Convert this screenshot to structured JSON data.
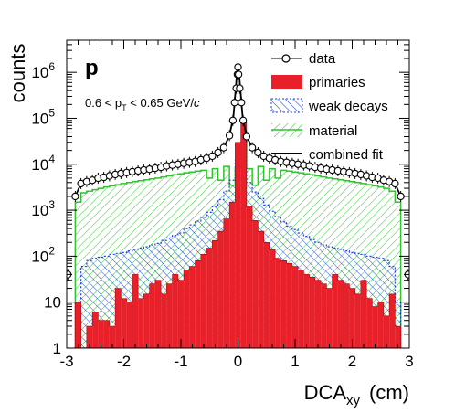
{
  "chart_data": {
    "type": "histogram",
    "y_scale": "log",
    "xlim": [
      -3,
      3
    ],
    "ylim": [
      1,
      5000000
    ],
    "xlabel": "DCA",
    "xlabel_sub": "xy",
    "xlabel_unit": "(cm)",
    "ylabel": "counts",
    "x_ticks": [
      -3,
      -2,
      -1,
      0,
      1,
      2,
      3
    ],
    "x_tick_labels": [
      "-3",
      "-2",
      "-1",
      "0",
      "1",
      "2",
      "3"
    ],
    "y_ticks": [
      1,
      10,
      100,
      1000,
      10000,
      100000,
      1000000
    ],
    "y_tick_labels": [
      {
        "base": "1",
        "exp": ""
      },
      {
        "base": "10",
        "exp": ""
      },
      {
        "base": "10",
        "exp": "2"
      },
      {
        "base": "10",
        "exp": "3"
      },
      {
        "base": "10",
        "exp": "4"
      },
      {
        "base": "10",
        "exp": "5"
      },
      {
        "base": "10",
        "exp": "6"
      }
    ],
    "annotations": {
      "particle": "p",
      "kin_pre": "0.6 < p",
      "kin_sub": "T",
      "kin_post": " < 0.65 GeV/",
      "kin_c": "c"
    },
    "legend": {
      "position": "top-right",
      "entries": [
        "data",
        "primaries",
        "weak decays",
        "material",
        "combined fit"
      ]
    },
    "colors": {
      "data": "#000000",
      "primaries": "#e8202a",
      "weak_decays": "#1f3fe0",
      "material": "#2fc42f",
      "combined_fit": "#000000"
    },
    "bin_edges": [
      -2.85,
      2.85
    ],
    "data_points": {
      "x": [
        -2.98,
        -2.85,
        -2.75,
        -2.65,
        -2.55,
        -2.45,
        -2.35,
        -2.25,
        -2.15,
        -2.05,
        -1.95,
        -1.85,
        -1.75,
        -1.65,
        -1.55,
        -1.45,
        -1.35,
        -1.25,
        -1.15,
        -1.05,
        -0.95,
        -0.85,
        -0.75,
        -0.65,
        -0.55,
        -0.45,
        -0.35,
        -0.25,
        -0.15,
        -0.09,
        -0.06,
        -0.03,
        -0.01,
        0.0,
        0.01,
        0.03,
        0.06,
        0.09,
        0.15,
        0.25,
        0.35,
        0.45,
        0.55,
        0.65,
        0.75,
        0.85,
        0.95,
        1.05,
        1.15,
        1.25,
        1.35,
        1.45,
        1.55,
        1.65,
        1.75,
        1.85,
        1.95,
        2.05,
        2.15,
        2.25,
        2.35,
        2.45,
        2.55,
        2.65,
        2.75,
        2.85,
        2.98
      ],
      "y": [
        40,
        2000,
        3800,
        4200,
        4500,
        5000,
        5200,
        5600,
        6000,
        6300,
        6600,
        6900,
        7200,
        7500,
        7800,
        8200,
        8600,
        9200,
        9600,
        10000,
        10500,
        11000,
        11500,
        12500,
        13500,
        15000,
        18000,
        23000,
        42000,
        90000,
        220000,
        450000,
        900000,
        1300000,
        900000,
        450000,
        220000,
        90000,
        40000,
        23000,
        18000,
        15000,
        13500,
        12500,
        11500,
        11000,
        10500,
        10000,
        9600,
        9200,
        8600,
        8200,
        7800,
        7500,
        7200,
        6900,
        6600,
        6300,
        6000,
        5600,
        5200,
        5000,
        4500,
        4200,
        3800,
        2000,
        40
      ]
    },
    "series": [
      {
        "name": "primaries",
        "bin_width": 0.1,
        "x_start": -2.85,
        "values": [
          10,
          1,
          3,
          6,
          4,
          4,
          3,
          20,
          12,
          10,
          40,
          12,
          15,
          25,
          30,
          15,
          25,
          40,
          30,
          50,
          60,
          80,
          110,
          150,
          220,
          350,
          650,
          1500,
          30000,
          80000,
          1200,
          600,
          350,
          200,
          140,
          90,
          80,
          70,
          60,
          50,
          40,
          35,
          30,
          25,
          20,
          40,
          30,
          25,
          20,
          15,
          30,
          12,
          8,
          10,
          5,
          15,
          3
        ]
      },
      {
        "name": "weak decays",
        "bin_width": 0.1,
        "x_start": -2.85,
        "values": [
          10,
          60,
          80,
          90,
          95,
          100,
          110,
          115,
          120,
          130,
          140,
          150,
          160,
          175,
          190,
          220,
          250,
          280,
          320,
          400,
          480,
          580,
          700,
          900,
          1200,
          1700,
          2600,
          4500,
          12000,
          30000,
          4000,
          2500,
          1800,
          1300,
          950,
          720,
          560,
          450,
          380,
          320,
          270,
          230,
          200,
          175,
          160,
          150,
          140,
          130,
          120,
          115,
          110,
          100,
          95,
          90,
          80,
          60,
          10
        ]
      },
      {
        "name": "material",
        "bin_width": 0.1,
        "x_start": -2.85,
        "values": [
          1500,
          2400,
          2600,
          2800,
          3000,
          3200,
          3400,
          3600,
          3800,
          4000,
          4200,
          4400,
          4600,
          4800,
          5000,
          5300,
          5600,
          5900,
          6200,
          6500,
          6800,
          7100,
          7400,
          5000,
          8000,
          4500,
          9000,
          3500,
          8000,
          30000,
          8000,
          3500,
          9000,
          4500,
          8000,
          5000,
          7400,
          7100,
          6800,
          6500,
          6200,
          5900,
          5600,
          5300,
          5000,
          4800,
          4600,
          4400,
          4200,
          4000,
          3800,
          3600,
          3400,
          3200,
          3000,
          2600,
          1500
        ]
      },
      {
        "name": "combined fit",
        "x": [
          -2.85,
          -2.75,
          -2.65,
          -2.55,
          -2.45,
          -2.35,
          -2.25,
          -2.15,
          -2.05,
          -1.95,
          -1.85,
          -1.75,
          -1.65,
          -1.55,
          -1.45,
          -1.35,
          -1.25,
          -1.15,
          -1.05,
          -0.95,
          -0.85,
          -0.75,
          -0.65,
          -0.55,
          -0.45,
          -0.35,
          -0.25,
          -0.15,
          -0.08,
          -0.04,
          -0.02,
          0.0,
          0.02,
          0.04,
          0.08,
          0.15,
          0.25,
          0.35,
          0.45,
          0.55,
          0.65,
          0.75,
          0.85,
          0.95,
          1.05,
          1.15,
          1.25,
          1.35,
          1.45,
          1.55,
          1.65,
          1.75,
          1.85,
          1.95,
          2.05,
          2.15,
          2.25,
          2.35,
          2.45,
          2.55,
          2.65,
          2.75,
          2.85
        ],
        "y": [
          2000,
          3800,
          4200,
          4500,
          5000,
          5200,
          5600,
          6000,
          6300,
          6600,
          6900,
          7200,
          7500,
          7800,
          8200,
          8600,
          9200,
          9600,
          10000,
          10500,
          11000,
          11500,
          12500,
          13500,
          15000,
          18000,
          23000,
          42000,
          110000,
          450000,
          900000,
          1250000,
          900000,
          450000,
          110000,
          40000,
          23000,
          18000,
          15000,
          13500,
          12500,
          11500,
          11000,
          10500,
          10000,
          9600,
          9200,
          8600,
          8200,
          7800,
          7500,
          7200,
          6900,
          6600,
          6300,
          6000,
          5600,
          5200,
          5000,
          4500,
          4200,
          3800,
          2000
        ]
      }
    ]
  }
}
